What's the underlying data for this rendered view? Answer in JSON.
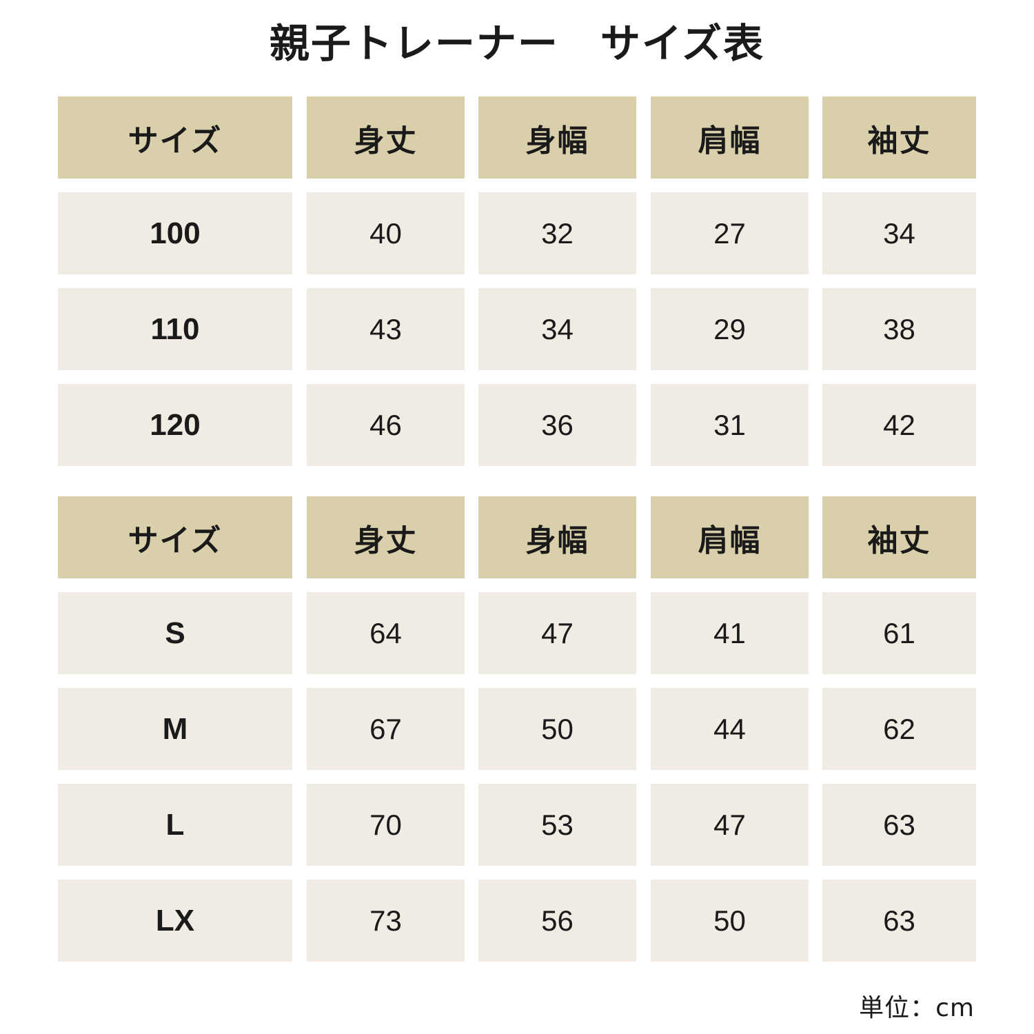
{
  "title": "親子トレーナー　サイズ表",
  "kids_table": {
    "headers": [
      "サイズ",
      "身丈",
      "身幅",
      "肩幅",
      "袖丈"
    ],
    "rows": [
      [
        "100",
        "40",
        "32",
        "27",
        "34"
      ],
      [
        "110",
        "43",
        "34",
        "29",
        "38"
      ],
      [
        "120",
        "46",
        "36",
        "31",
        "42"
      ]
    ]
  },
  "adult_table": {
    "headers": [
      "サイズ",
      "身丈",
      "身幅",
      "肩幅",
      "袖丈"
    ],
    "rows": [
      [
        "S",
        "64",
        "47",
        "41",
        "61"
      ],
      [
        "M",
        "67",
        "50",
        "44",
        "62"
      ],
      [
        "L",
        "70",
        "53",
        "47",
        "63"
      ],
      [
        "LX",
        "73",
        "56",
        "50",
        "63"
      ]
    ]
  },
  "unit": "単位：cm",
  "colors": {
    "header_bg": "#d9cfaa",
    "cell_bg": "#f0ebe3",
    "text": "#1a1a1a"
  }
}
